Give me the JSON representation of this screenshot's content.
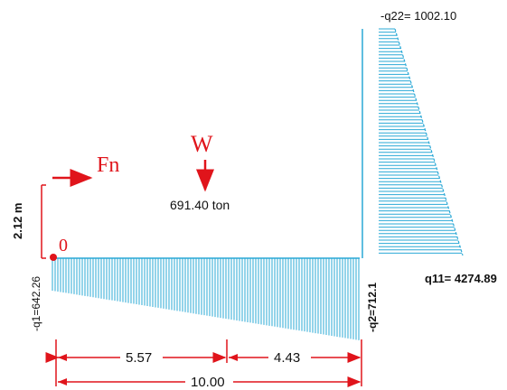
{
  "labels": {
    "q22": "-q22= 1002.10",
    "fn": "Fn",
    "w": "W",
    "weight": "691.40 ton",
    "height": "2.12  m",
    "origin": "0",
    "q1": "-q1=642.26",
    "q2": "-q2=712.1",
    "q11": "q11= 4274.89",
    "dim_left": "5.57",
    "dim_right": "4.43",
    "dim_total": "10.00"
  },
  "colors": {
    "red": "#e0141b",
    "hatch": "#2aa8d6",
    "text": "#111111"
  },
  "diagram_data": {
    "bottom_pressure": {
      "q_left": 642.26,
      "q_right": 712.1
    },
    "side_pressure": {
      "q_top": 1002.1,
      "q_bottom": 4274.89
    },
    "load_W_ton": 691.4,
    "lever_arm_m": 2.12,
    "spans": [
      5.57,
      4.43
    ],
    "total_length": 10.0
  }
}
